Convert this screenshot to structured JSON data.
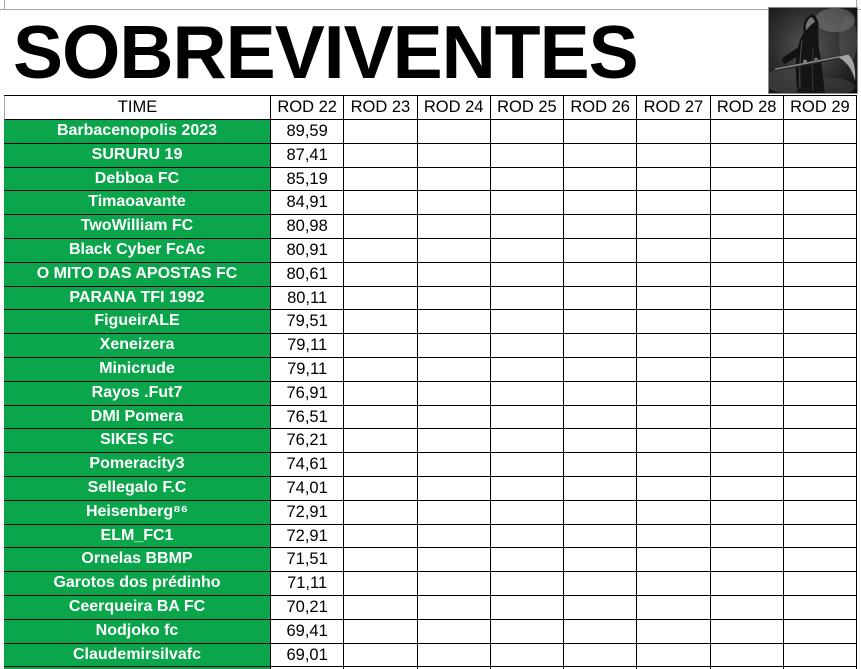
{
  "title": "SOBREVIVENTES",
  "logo": {
    "description": "grim reaper with scythe, dark grayscale picture"
  },
  "colors": {
    "team_cell_green": "#0BA64B",
    "team_text": "#FFFFFF",
    "grid_black": "#000000",
    "gridline_gray": "#A6A6A6"
  },
  "table": {
    "team_column_header": "TIME",
    "round_headers": [
      "ROD 22",
      "ROD 23",
      "ROD 24",
      "ROD 25",
      "ROD 26",
      "ROD 27",
      "ROD 28",
      "ROD 29"
    ],
    "empty_round_columns": 7,
    "rows": [
      {
        "team": "Barbacenopolis 2023",
        "rod22": "89,59"
      },
      {
        "team": "SURURU 19",
        "rod22": "87,41"
      },
      {
        "team": "Debboa FC",
        "rod22": "85,19"
      },
      {
        "team": "Timaoavante",
        "rod22": "84,91"
      },
      {
        "team": "TwoWilliam FC",
        "rod22": "80,98"
      },
      {
        "team": "Black Cyber FcAc",
        "rod22": "80,91"
      },
      {
        "team": "O MITO DAS APOSTAS FC",
        "rod22": "80,61"
      },
      {
        "team": "PARANA TFI 1992",
        "rod22": "80,11"
      },
      {
        "team": "FigueirALE",
        "rod22": "79,51"
      },
      {
        "team": "Xeneizera",
        "rod22": "79,11"
      },
      {
        "team": "Minicrude",
        "rod22": "79,11"
      },
      {
        "team": "Rayos .Fut7",
        "rod22": "76,91"
      },
      {
        "team": "DMI Pomera",
        "rod22": "76,51"
      },
      {
        "team": "SIKES FC",
        "rod22": "76,21"
      },
      {
        "team": "Pomeracity3",
        "rod22": "74,61"
      },
      {
        "team": "Sellegalo F.C",
        "rod22": "74,01"
      },
      {
        "team": "Heisenberg⁸⁶",
        "rod22": "72,91"
      },
      {
        "team": "ELM_FC1",
        "rod22": "72,91"
      },
      {
        "team": "Ornelas BBMP",
        "rod22": "71,51"
      },
      {
        "team": "Garotos dos prédinho",
        "rod22": "71,11"
      },
      {
        "team": "Ceerqueira BA FC",
        "rod22": "70,21"
      },
      {
        "team": "Nodjoko fc",
        "rod22": "69,41"
      },
      {
        "team": "Claudemirsilvafc",
        "rod22": "69,01"
      }
    ]
  }
}
